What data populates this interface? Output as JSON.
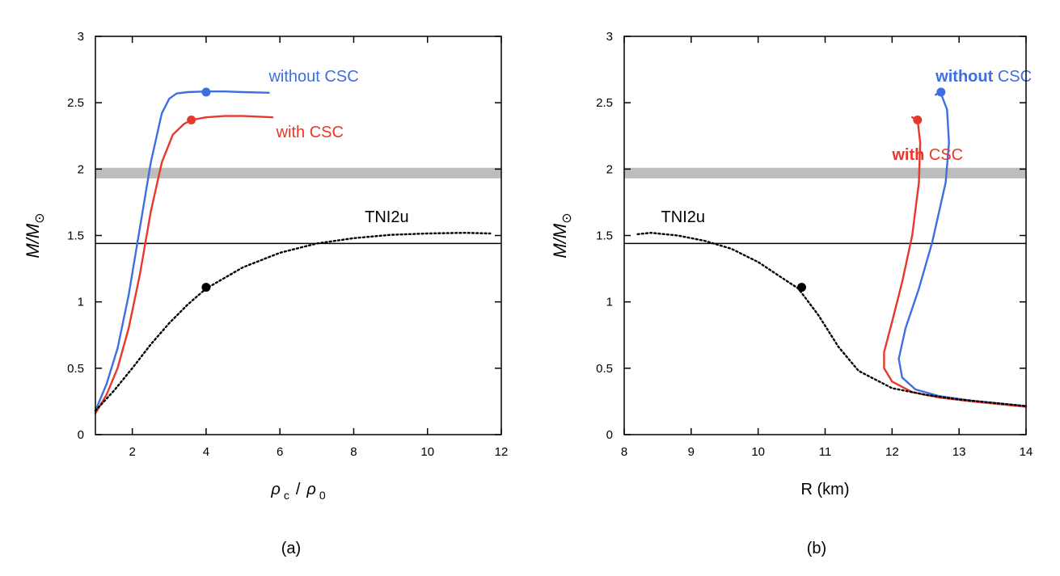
{
  "chart_data": [
    {
      "type": "line",
      "panel_label": "(a)",
      "xlabel_main": "ρ",
      "xlabel_sub1": "c",
      "xlabel_slash": "/",
      "xlabel_main2": "ρ",
      "xlabel_sub2": "0",
      "ylabel": "M/M",
      "ylabel_symbol": "⊙",
      "xlim": [
        1,
        12
      ],
      "ylim": [
        0,
        3
      ],
      "xticks": [
        2,
        4,
        6,
        8,
        10,
        12
      ],
      "xtick_labels": [
        "2",
        "4",
        "6",
        "8",
        "10",
        "12"
      ],
      "yticks": [
        0,
        0.5,
        1,
        1.5,
        2,
        2.5,
        3
      ],
      "ytick_labels": [
        "0",
        "0.5",
        "1",
        "1.5",
        "2",
        "2.5",
        "3"
      ],
      "band": {
        "y0": 1.93,
        "y1": 2.01,
        "color": "#bdbdbd"
      },
      "hline": {
        "y": 1.44,
        "color": "#000000"
      },
      "series": [
        {
          "name": "without CSC",
          "label": "without CSC",
          "label_at": [
            5.7,
            2.66
          ],
          "color": "#3d6fe0",
          "style": "solid",
          "x": [
            1.0,
            1.3,
            1.6,
            1.9,
            2.2,
            2.5,
            2.8,
            3.0,
            3.2,
            3.5,
            4.0,
            4.5,
            5.0,
            5.7
          ],
          "y": [
            0.18,
            0.38,
            0.65,
            1.05,
            1.55,
            2.05,
            2.42,
            2.53,
            2.57,
            2.58,
            2.585,
            2.585,
            2.58,
            2.575
          ],
          "max_marker": {
            "x": 4.0,
            "y": 2.58
          }
        },
        {
          "name": "with CSC",
          "label": "with CSC",
          "label_at": [
            5.9,
            2.24
          ],
          "color": "#e8382b",
          "style": "solid",
          "x": [
            1.0,
            1.3,
            1.6,
            1.9,
            2.2,
            2.5,
            2.8,
            3.1,
            3.4,
            3.6,
            4.0,
            4.5,
            5.0,
            5.8
          ],
          "y": [
            0.16,
            0.3,
            0.5,
            0.8,
            1.2,
            1.68,
            2.05,
            2.26,
            2.34,
            2.37,
            2.39,
            2.4,
            2.4,
            2.39
          ],
          "max_marker": {
            "x": 3.6,
            "y": 2.37
          }
        },
        {
          "name": "TNI2u",
          "label": "TNI2u",
          "label_at": [
            8.3,
            1.6
          ],
          "color": "#000000",
          "style": "dotted",
          "x": [
            1.0,
            1.5,
            2.0,
            2.5,
            3.0,
            3.5,
            4.0,
            5.0,
            6.0,
            7.0,
            8.0,
            9.0,
            10.0,
            11.0,
            11.7
          ],
          "y": [
            0.18,
            0.33,
            0.5,
            0.68,
            0.84,
            0.98,
            1.1,
            1.26,
            1.37,
            1.44,
            1.48,
            1.505,
            1.515,
            1.52,
            1.515
          ],
          "marker": {
            "x": 4.0,
            "y": 1.11
          }
        }
      ]
    },
    {
      "type": "line",
      "panel_label": "(b)",
      "xlabel": "R (km)",
      "ylabel": "M/M",
      "ylabel_symbol": "⊙",
      "xlim": [
        8,
        14
      ],
      "ylim": [
        0,
        3
      ],
      "xticks": [
        8,
        9,
        10,
        11,
        12,
        13,
        14
      ],
      "xtick_labels": [
        "8",
        "9",
        "10",
        "11",
        "12",
        "13",
        "14"
      ],
      "yticks": [
        0,
        0.5,
        1,
        1.5,
        2,
        2.5,
        3
      ],
      "ytick_labels": [
        "0",
        "0.5",
        "1",
        "1.5",
        "2",
        "2.5",
        "3"
      ],
      "band": {
        "y0": 1.93,
        "y1": 2.01,
        "color": "#bdbdbd"
      },
      "hline": {
        "y": 1.44,
        "color": "#000000"
      },
      "series": [
        {
          "name": "without CSC",
          "label_bold": "without",
          "label_rest": " CSC",
          "label_at": [
            12.65,
            2.66
          ],
          "color": "#3d6fe0",
          "style": "solid",
          "x": [
            12.65,
            12.72,
            12.82,
            12.85,
            12.8,
            12.6,
            12.4,
            12.2,
            12.1,
            12.15,
            12.35,
            12.7,
            13.2,
            14.0
          ],
          "y": [
            2.56,
            2.58,
            2.45,
            2.2,
            1.9,
            1.45,
            1.1,
            0.8,
            0.57,
            0.43,
            0.34,
            0.29,
            0.255,
            0.215
          ],
          "max_marker": {
            "x": 12.73,
            "y": 2.58
          }
        },
        {
          "name": "with CSC",
          "label_bold": "with",
          "label_rest": " CSC",
          "label_at": [
            12.0,
            2.07
          ],
          "color": "#e8382b",
          "style": "solid",
          "x": [
            12.3,
            12.38,
            12.42,
            12.4,
            12.3,
            12.15,
            12.0,
            11.88,
            11.88,
            12.0,
            12.3,
            12.7,
            13.2,
            14.0
          ],
          "y": [
            2.39,
            2.37,
            2.2,
            1.9,
            1.5,
            1.15,
            0.85,
            0.62,
            0.5,
            0.4,
            0.32,
            0.28,
            0.25,
            0.21
          ],
          "max_marker": {
            "x": 12.38,
            "y": 2.37
          }
        },
        {
          "name": "TNI2u",
          "label": "TNI2u",
          "label_at": [
            8.55,
            1.6
          ],
          "color": "#000000",
          "style": "dotted",
          "x": [
            8.2,
            8.4,
            8.8,
            9.2,
            9.6,
            10.0,
            10.3,
            10.6,
            10.9,
            11.2,
            11.5,
            12.0,
            12.5,
            13.0,
            14.0
          ],
          "y": [
            1.51,
            1.52,
            1.5,
            1.46,
            1.4,
            1.3,
            1.2,
            1.1,
            0.9,
            0.66,
            0.48,
            0.35,
            0.3,
            0.265,
            0.215
          ],
          "marker": {
            "x": 10.65,
            "y": 1.11
          }
        }
      ]
    }
  ]
}
